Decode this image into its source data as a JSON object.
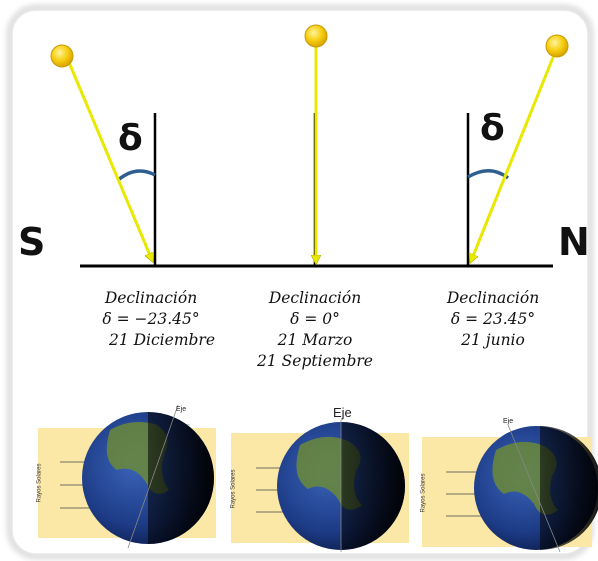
{
  "directions": {
    "south": "S",
    "north": "N"
  },
  "angle_symbol": "δ",
  "captions": [
    {
      "title": "Declinación",
      "formula": "δ = −23.45°",
      "date1": "21 Diciembre",
      "date2": ""
    },
    {
      "title": "Declinación",
      "formula": "δ = 0°",
      "date1": "21 Marzo",
      "date2": "21 Septiembre"
    },
    {
      "title": "Declinación",
      "formula": "δ = 23.45°",
      "date1": "21 junio",
      "date2": ""
    }
  ],
  "globes": [
    {
      "axis_label": "Eje",
      "rays_label": "Rayos Solares"
    },
    {
      "axis_label": "Eje",
      "rays_label": "Rayos Solares"
    },
    {
      "axis_label": "Eje",
      "rays_label": "Rayos Solares"
    }
  ],
  "colors": {
    "sun": "#f5c800",
    "ray": "#f2f200",
    "arc": "#2f5f8f",
    "panel": "#fbe7a6",
    "ocean": "#1e3f8a",
    "land": "#6b8a3a"
  }
}
